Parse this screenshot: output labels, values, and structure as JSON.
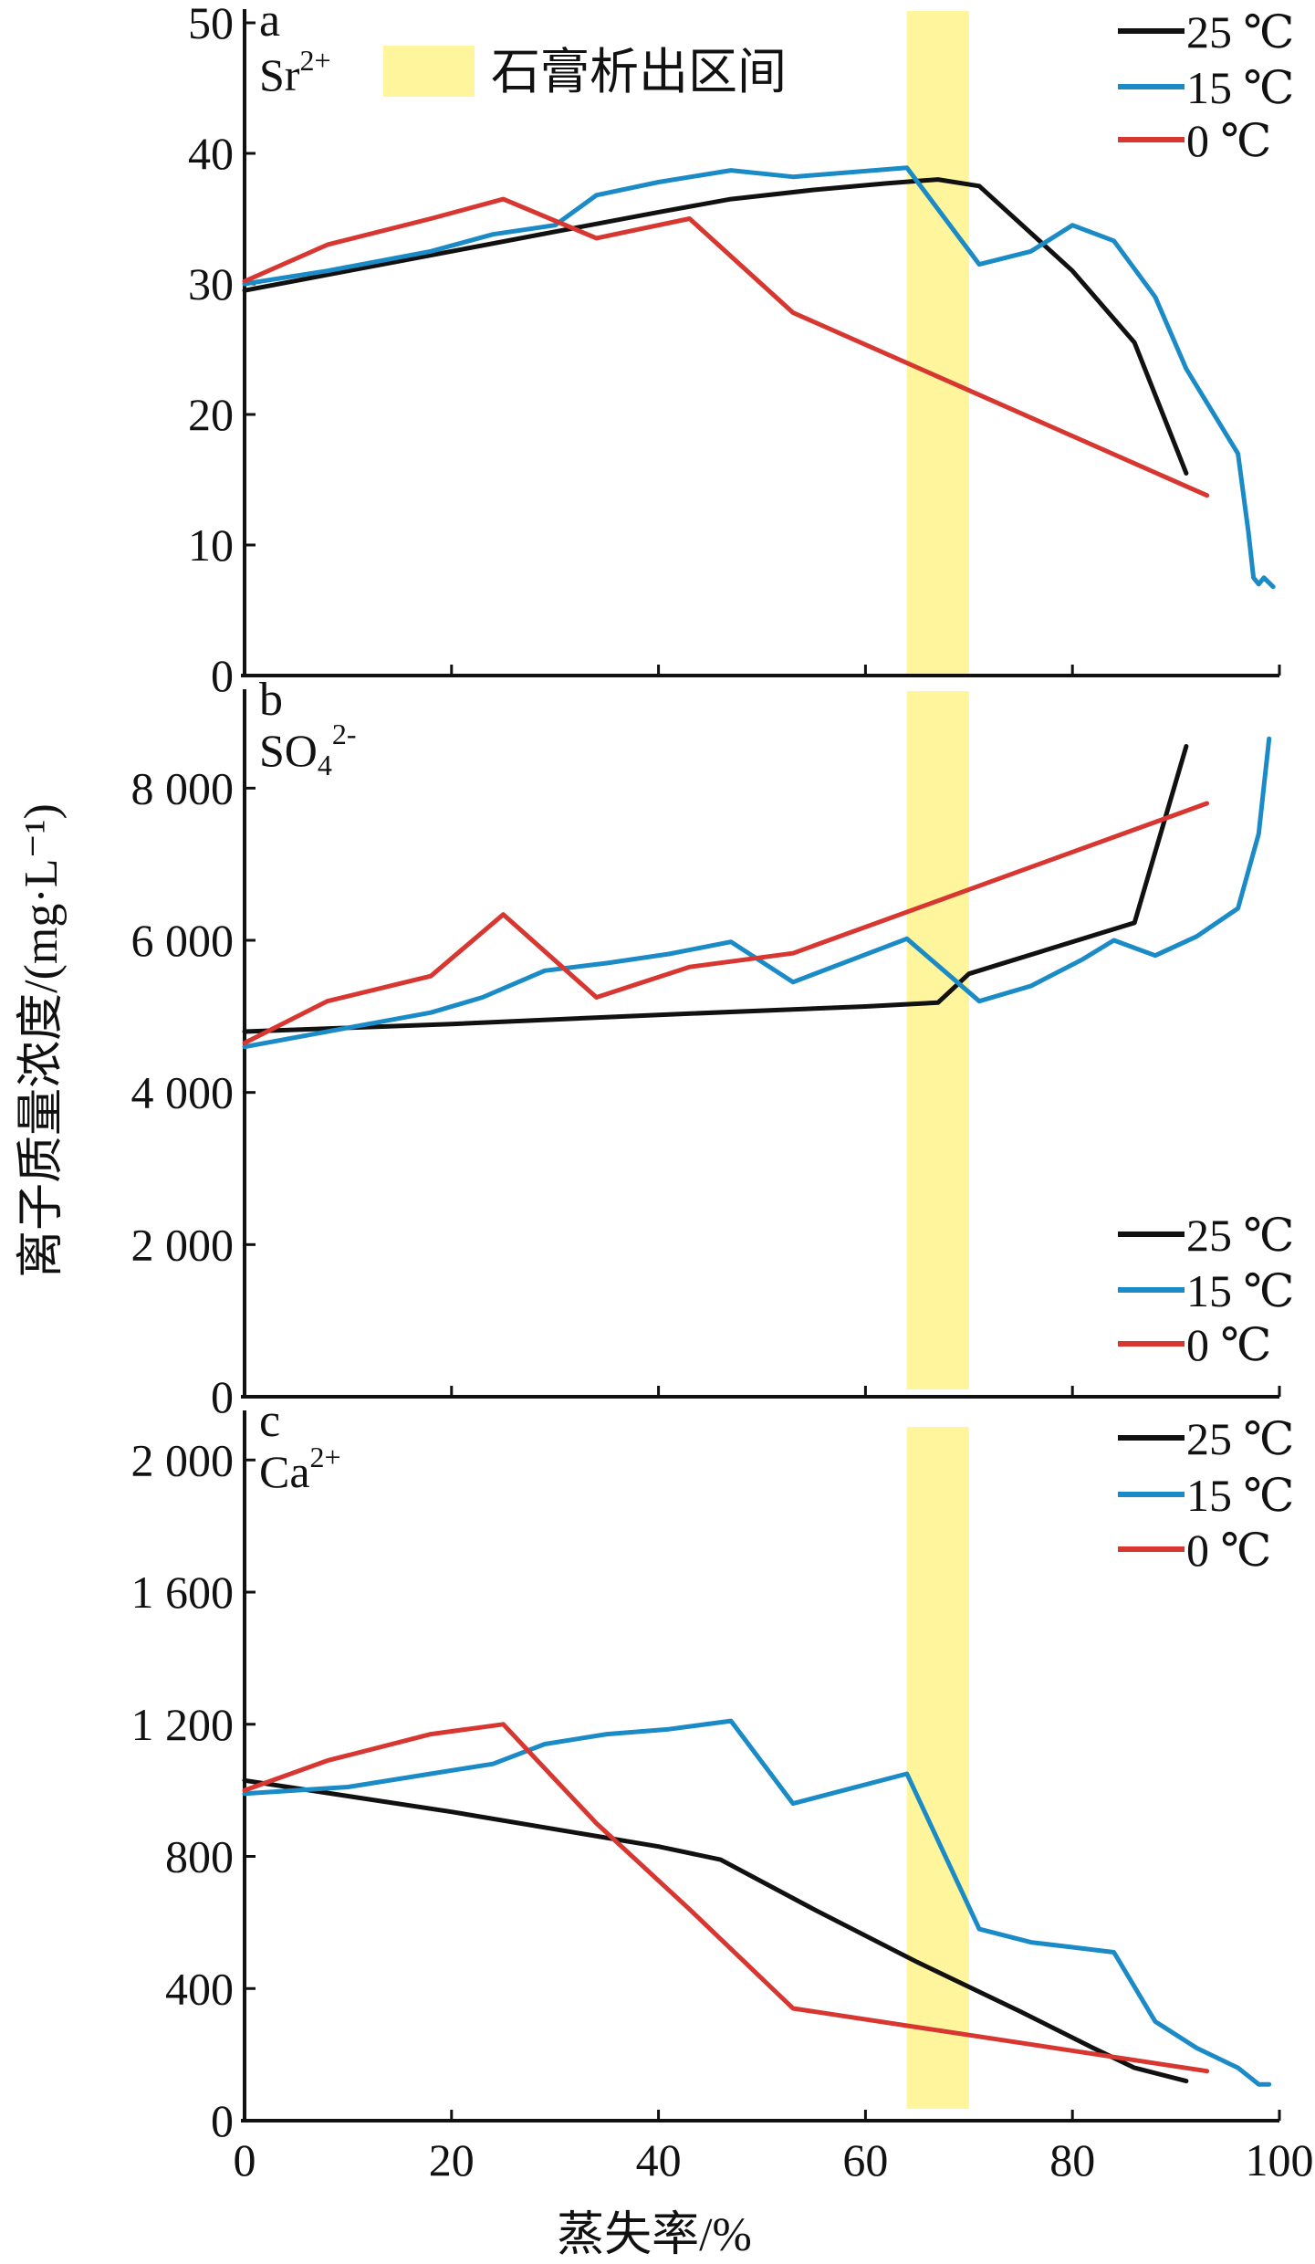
{
  "chart_data": [
    {
      "type": "line",
      "panel": "a",
      "ion": {
        "base": "Sr",
        "sub": "",
        "sup": "2+"
      },
      "ylim": [
        0,
        50
      ],
      "yticks": [
        0,
        10,
        20,
        30,
        40,
        50
      ],
      "ytick_labels": [
        "0",
        "10",
        "20",
        "30",
        "40",
        "50"
      ],
      "annotation": "石膏析出区间",
      "legend": [
        "25 ℃",
        "15 ℃",
        "0 ℃"
      ],
      "series": [
        {
          "name": "25 ℃",
          "color": "#111111",
          "x": [
            0,
            10,
            20,
            30,
            40,
            47,
            55,
            62,
            67,
            71,
            80,
            86,
            91
          ],
          "y": [
            29.5,
            31,
            32.5,
            34,
            35.5,
            36.5,
            37.2,
            37.7,
            38,
            37.5,
            31,
            25.5,
            15.5
          ]
        },
        {
          "name": "15 ℃",
          "color": "#1a8bc6",
          "x": [
            0,
            8,
            18,
            24,
            30,
            34,
            40,
            47,
            53,
            64,
            71,
            76,
            80,
            84,
            88,
            91,
            96,
            97,
            97.5,
            98,
            98.5,
            99.4
          ],
          "y": [
            30,
            31,
            32.5,
            33.8,
            34.5,
            36.8,
            37.8,
            38.7,
            38.2,
            38.9,
            31.5,
            32.5,
            34.5,
            33.3,
            29,
            23.5,
            17,
            11,
            7.5,
            7,
            7.5,
            6.8
          ]
        },
        {
          "name": "0 ℃",
          "color": "#d73730",
          "x": [
            0,
            8,
            18,
            25,
            34,
            43,
            53,
            93
          ],
          "y": [
            30.2,
            33,
            35,
            36.5,
            33.5,
            35,
            27.8,
            13.8
          ]
        }
      ]
    },
    {
      "type": "line",
      "panel": "b",
      "ion": {
        "base": "SO",
        "sub": "4",
        "sup": "2-"
      },
      "ylim": [
        0,
        9300
      ],
      "yticks": [
        0,
        2000,
        4000,
        6000,
        8000
      ],
      "ytick_labels": [
        "0",
        "2 000",
        "4 000",
        "6 000",
        "8 000"
      ],
      "legend": [
        "25 ℃",
        "15 ℃",
        "0 ℃"
      ],
      "series": [
        {
          "name": "25 ℃",
          "color": "#111111",
          "x": [
            0,
            20,
            40,
            60,
            67,
            70,
            86,
            91
          ],
          "y": [
            4800,
            4900,
            5020,
            5130,
            5180,
            5560,
            6230,
            8550
          ]
        },
        {
          "name": "15 ℃",
          "color": "#1a8bc6",
          "x": [
            0,
            10,
            18,
            23,
            29,
            35,
            41,
            47,
            53,
            64,
            71,
            76,
            81,
            84,
            88,
            92,
            96,
            98,
            99
          ],
          "y": [
            4600,
            4850,
            5050,
            5250,
            5600,
            5700,
            5820,
            5980,
            5450,
            6020,
            5200,
            5400,
            5750,
            6000,
            5800,
            6050,
            6420,
            7400,
            8650
          ]
        },
        {
          "name": "0 ℃",
          "color": "#d73730",
          "x": [
            0,
            8,
            18,
            25,
            34,
            43,
            53,
            93
          ],
          "y": [
            4650,
            5200,
            5530,
            6340,
            5250,
            5650,
            5830,
            7800
          ]
        }
      ]
    },
    {
      "type": "line",
      "panel": "c",
      "ion": {
        "base": "Ca",
        "sub": "",
        "sup": "2+"
      },
      "ylim": [
        0,
        2150
      ],
      "yticks": [
        0,
        400,
        800,
        1200,
        1600,
        2000
      ],
      "ytick_labels": [
        "0",
        "400",
        "800",
        "1 200",
        "1 600",
        "2 000"
      ],
      "xlim": [
        0,
        100
      ],
      "xticks": [
        0,
        20,
        40,
        60,
        80,
        100
      ],
      "xtick_labels": [
        "0",
        "20",
        "40",
        "60",
        "80",
        "100"
      ],
      "legend": [
        "25 ℃",
        "15 ℃",
        "0 ℃"
      ],
      "series": [
        {
          "name": "25 ℃",
          "color": "#111111",
          "x": [
            0,
            20,
            40,
            46,
            55,
            65,
            75,
            82,
            86,
            91
          ],
          "y": [
            1030,
            935,
            830,
            790,
            640,
            480,
            330,
            220,
            160,
            120
          ]
        },
        {
          "name": "15 ℃",
          "color": "#1a8bc6",
          "x": [
            0,
            10,
            18,
            24,
            29,
            35,
            41,
            47,
            53,
            64,
            71,
            76,
            80,
            84,
            88,
            92,
            96,
            98,
            99
          ],
          "y": [
            990,
            1010,
            1050,
            1080,
            1140,
            1170,
            1185,
            1210,
            960,
            1050,
            580,
            540,
            525,
            510,
            300,
            220,
            160,
            110,
            110
          ]
        },
        {
          "name": "0 ℃",
          "color": "#d73730",
          "x": [
            0,
            8,
            18,
            25,
            34,
            43,
            53,
            93
          ],
          "y": [
            1000,
            1090,
            1170,
            1200,
            900,
            640,
            340,
            150
          ]
        }
      ]
    }
  ],
  "band": {
    "x0": 64,
    "x1": 70,
    "color": "#fff59d"
  },
  "xlabel": "蒸失率/%",
  "ylabel": "离子质量浓度/(mg·L⁻¹)"
}
